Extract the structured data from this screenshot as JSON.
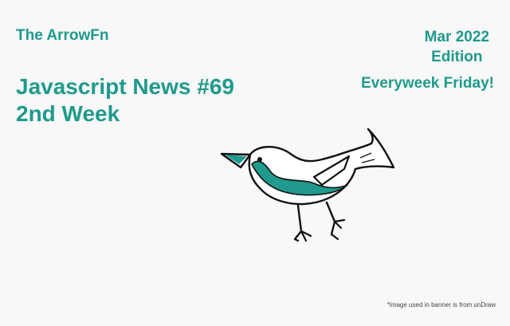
{
  "banner": {
    "brand": "The ArrowFn",
    "title_line1": "Javascript News #69",
    "title_line2": "2nd Week",
    "edition_line1": "Mar 2022",
    "edition_line2": "Edition",
    "schedule": "Everyweek Friday!",
    "credit": "*Image used in banner is from unDraw",
    "illustration_icon": "bird-illustration",
    "colors": {
      "accent": "#1f9a8c",
      "background": "#f8f8f8",
      "ink": "#111111"
    }
  }
}
